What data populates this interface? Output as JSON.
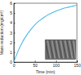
{
  "chart_data": {
    "type": "line",
    "x_label": "Time (min)",
    "y_label": "Mass reduction (mg/cm²)",
    "x": [
      0,
      10,
      20,
      30,
      40,
      50,
      60,
      70,
      80,
      90,
      100,
      110,
      120,
      130,
      140,
      150
    ],
    "values": [
      0,
      1.1,
      2.0,
      2.7,
      3.3,
      3.8,
      4.2,
      4.5,
      4.8,
      5.0,
      5.2,
      5.35,
      5.5,
      5.6,
      5.7,
      5.8
    ],
    "color": "#4db8e8",
    "xlim": [
      0,
      150
    ],
    "xticks": [
      0,
      50,
      100,
      150
    ],
    "ylim": [
      0,
      6
    ],
    "yticks": [
      0,
      1,
      2,
      3,
      4,
      5,
      6
    ],
    "grid": false
  }
}
